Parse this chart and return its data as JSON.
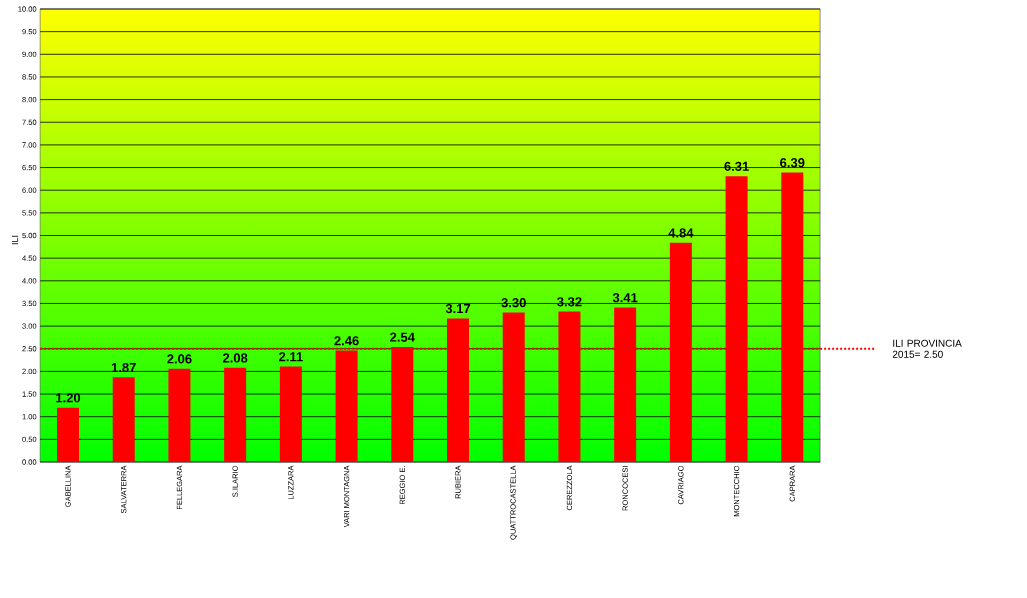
{
  "chart_data": {
    "type": "bar",
    "ylabel": "ILI",
    "categories": [
      "GABELLINA",
      "SALVATERRA",
      "FELLEGARA",
      "S.ILARIO",
      "LUZZARA",
      "VARI MONTAGNA",
      "REGGIO E.",
      "RUBIERA",
      "QUATTROCASTELLA",
      "CEREZZOLA",
      "RONCOCESI",
      "CAVRIAGO",
      "MONTECCHIO",
      "CAPRARA"
    ],
    "values": [
      1.2,
      1.87,
      2.06,
      2.08,
      2.11,
      2.46,
      2.54,
      3.17,
      3.3,
      3.32,
      3.41,
      4.84,
      6.31,
      6.39
    ],
    "value_labels": [
      "1.20",
      "1.87",
      "2.06",
      "2.08",
      "2.11",
      "2.46",
      "2.54",
      "3.17",
      "3.30",
      "3.32",
      "3.41",
      "4.84",
      "6.31",
      "6.39"
    ],
    "color": "#ff0000",
    "ylim": [
      0,
      10
    ],
    "yticks": [
      {
        "value": 0,
        "label": "0.00"
      },
      {
        "value": 0.5,
        "label": "0.50"
      },
      {
        "value": 1,
        "label": "1.00"
      },
      {
        "value": 1.5,
        "label": "1.50"
      },
      {
        "value": 2,
        "label": "2.00"
      },
      {
        "value": 2.5,
        "label": "2.50"
      },
      {
        "value": 3,
        "label": "3.00"
      },
      {
        "value": 3.5,
        "label": "3.50"
      },
      {
        "value": 4,
        "label": "4.00"
      },
      {
        "value": 4.5,
        "label": "4.50"
      },
      {
        "value": 5,
        "label": "5.00"
      },
      {
        "value": 5.5,
        "label": "5.50"
      },
      {
        "value": 6,
        "label": "6.00"
      },
      {
        "value": 6.5,
        "label": "6.50"
      },
      {
        "value": 7,
        "label": "7.00"
      },
      {
        "value": 7.5,
        "label": "7.50"
      },
      {
        "value": 8,
        "label": "8.00"
      },
      {
        "value": 8.5,
        "label": "8.50"
      },
      {
        "value": 9,
        "label": "9.00"
      },
      {
        "value": 9.5,
        "label": "9.50"
      },
      {
        "value": 10,
        "label": "10.00"
      }
    ],
    "grid": "y",
    "ref_lines": [
      {
        "axis": "y",
        "value": 2.5,
        "label": "ILI PROVINCIA 2015= 2.50",
        "color": "#ff0000",
        "line_style": "dotted"
      }
    ]
  }
}
